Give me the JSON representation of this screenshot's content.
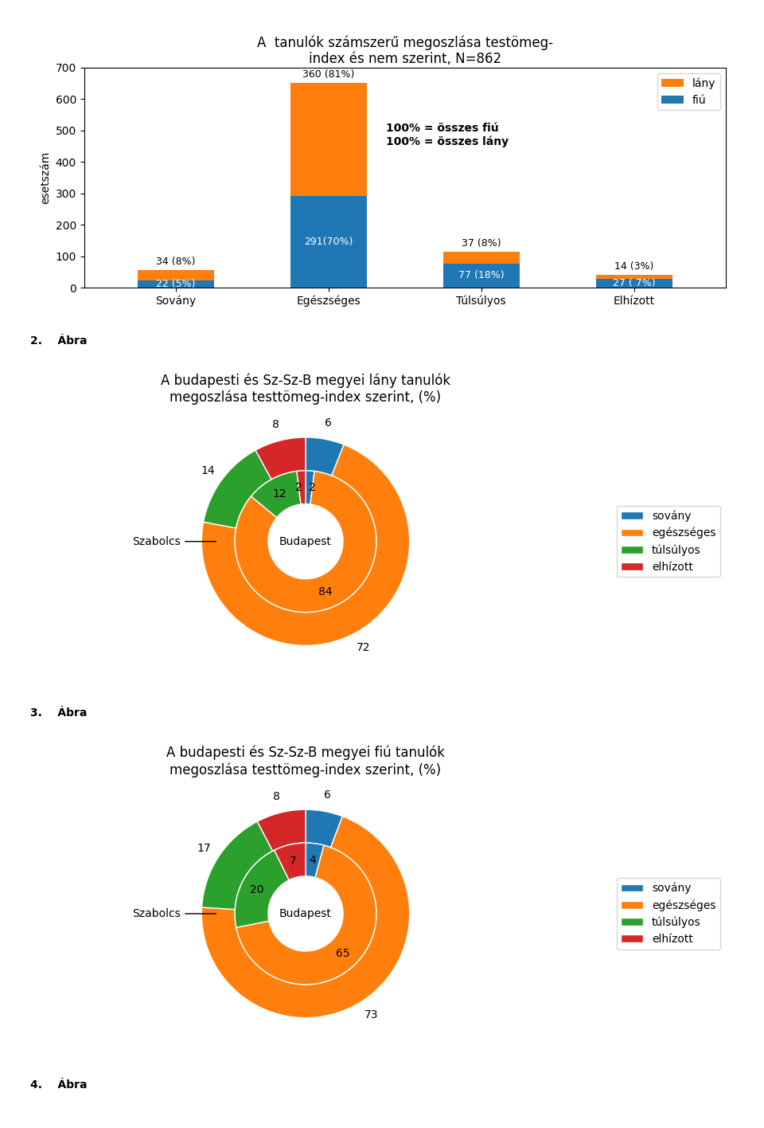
{
  "chart_data": [
    {
      "type": "bar",
      "stacked": true,
      "title": "A  tanulók számszerű megoszlása testömeg-\nindex és nem szerint, N=862",
      "categories": [
        "Sovány",
        "Egészséges",
        "Túlsúlyos",
        "Elhízott"
      ],
      "series": [
        {
          "name": "fiú",
          "values": [
            22,
            291,
            77,
            27
          ],
          "value_labels": [
            "22 (5%)",
            "291(70%)",
            "77 (18%)",
            "27 ( 7%)"
          ]
        },
        {
          "name": "lány",
          "values": [
            34,
            360,
            37,
            14
          ],
          "value_labels": [
            "34 (8%)",
            "360 (81%)",
            "37 (8%)",
            "14 (3%)"
          ]
        }
      ],
      "ylabel": "esetszám",
      "ylim": [
        0,
        700
      ],
      "yticks": [
        0,
        100,
        200,
        300,
        400,
        500,
        600,
        700
      ],
      "annotation": "100% = összes fiú\n100% = összes lány",
      "caption": "2.    Ábra",
      "legend": "upper right",
      "data_labels": true
    },
    {
      "type": "pie",
      "title": "A budapesti és Sz-Sz-B megyei lány tanulók\nmegoszlása testtömeg-index szerint, (%)",
      "categories": [
        "sovány",
        "egészséges",
        "túlsúlyos",
        "elhízott"
      ],
      "series": [
        {
          "name": "Szabolcs",
          "values": [
            6,
            72,
            14,
            8
          ]
        },
        {
          "name": "Budapest",
          "values": [
            2,
            84,
            12,
            2
          ]
        }
      ],
      "data_labels": true,
      "legend": "center right",
      "caption": "3.    Ábra"
    },
    {
      "type": "pie",
      "title": "A budapesti és Sz-Sz-B megyei fiú tanulók\nmegoszlása testtömeg-index szerint, (%)",
      "categories": [
        "sovány",
        "egészséges",
        "túlsúlyos",
        "elhízott"
      ],
      "series": [
        {
          "name": "Szabolcs",
          "values": [
            6,
            73,
            17,
            8
          ]
        },
        {
          "name": "Budapest",
          "values": [
            4,
            65,
            20,
            7
          ]
        }
      ],
      "data_labels": true,
      "legend": "center right",
      "caption": "4.    Ábra"
    }
  ]
}
